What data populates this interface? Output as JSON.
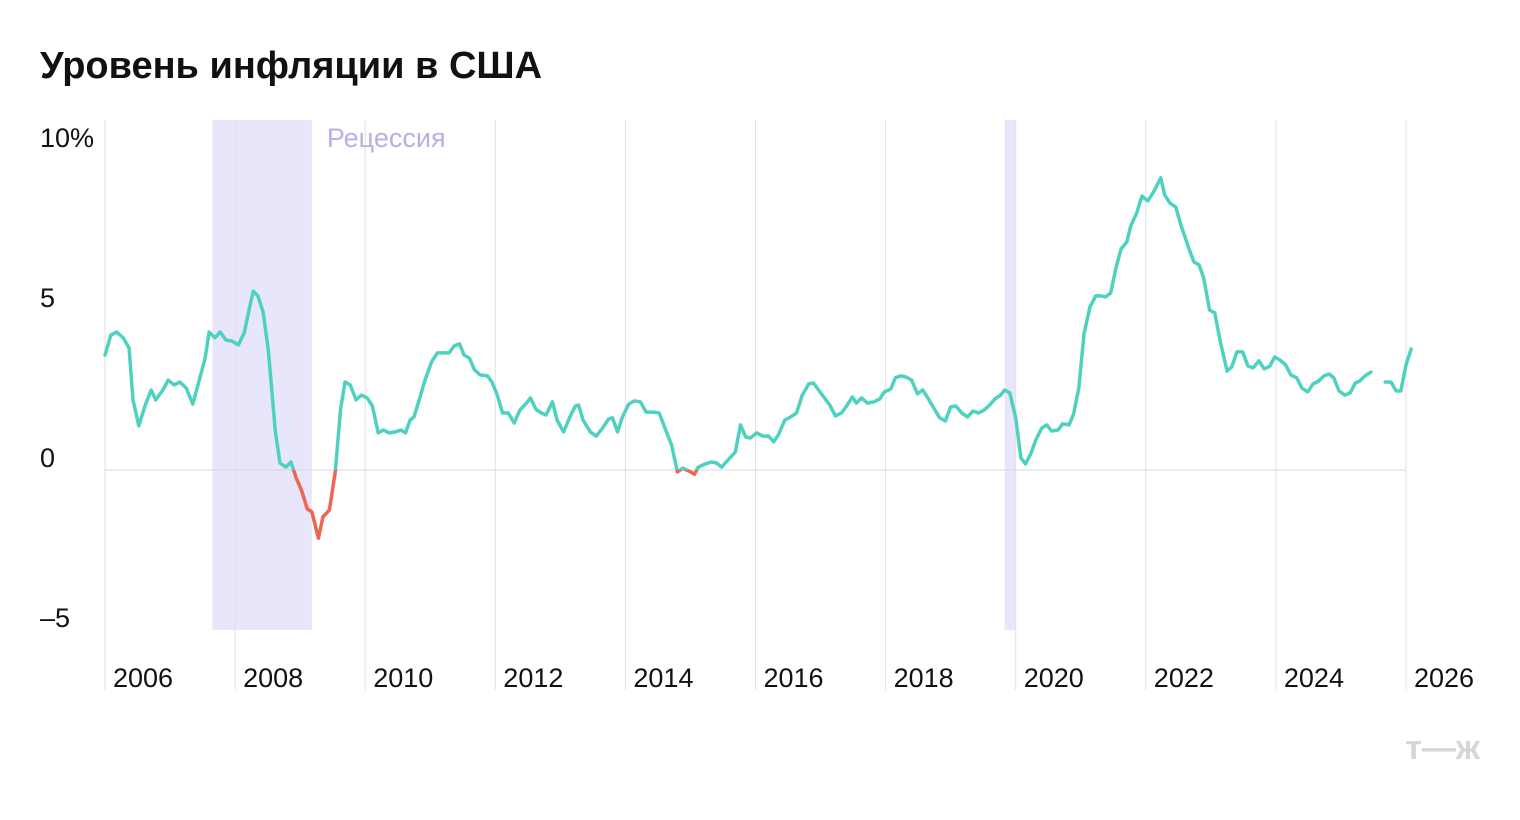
{
  "chart_data": {
    "type": "line",
    "title": "Уровень инфляции в США",
    "recession_label": "Рецессия",
    "logo": "т—ж",
    "color": "#4fd1c0",
    "negative_color": "#ec6651",
    "recession_color": "#e8e6fa",
    "grid": true,
    "xlim": [
      2006,
      2026
    ],
    "xticks": [
      2006,
      2008,
      2010,
      2012,
      2014,
      2016,
      2018,
      2020,
      2022,
      2024,
      2026
    ],
    "ylim": [
      -5,
      11
    ],
    "yticks": [
      {
        "value": -5,
        "label": "–5"
      },
      0,
      5,
      {
        "value": 10,
        "label": "10%"
      }
    ],
    "recessions": [
      {
        "start": 2007.65,
        "end": 2009.18
      },
      {
        "start": 2019.83,
        "end": 2020.0
      }
    ],
    "x": [
      2006.0,
      2006.09,
      2006.18,
      2006.28,
      2006.37,
      2006.43,
      2006.52,
      2006.62,
      2006.71,
      2006.78,
      2006.89,
      2006.97,
      2007.06,
      2007.15,
      2007.25,
      2007.35,
      2007.45,
      2007.54,
      2007.6,
      2007.69,
      2007.77,
      2007.86,
      2007.95,
      2008.05,
      2008.14,
      2008.23,
      2008.28,
      2008.35,
      2008.43,
      2008.51,
      2008.62,
      2008.69,
      2008.78,
      2008.86,
      2008.94,
      2009.02,
      2009.11,
      2009.18,
      2009.28,
      2009.35,
      2009.45,
      2009.54,
      2009.62,
      2009.69,
      2009.77,
      2009.86,
      2009.94,
      2010.03,
      2010.11,
      2010.2,
      2010.28,
      2010.37,
      2010.46,
      2010.55,
      2010.62,
      2010.69,
      2010.75,
      2010.83,
      2010.92,
      2011.02,
      2011.11,
      2011.2,
      2011.29,
      2011.37,
      2011.45,
      2011.52,
      2011.6,
      2011.68,
      2011.77,
      2011.88,
      2011.95,
      2012.03,
      2012.11,
      2012.2,
      2012.29,
      2012.38,
      2012.48,
      2012.54,
      2012.63,
      2012.71,
      2012.78,
      2012.88,
      2012.95,
      2013.05,
      2013.14,
      2013.23,
      2013.28,
      2013.35,
      2013.46,
      2013.55,
      2013.65,
      2013.74,
      2013.8,
      2013.88,
      2013.95,
      2014.05,
      2014.14,
      2014.23,
      2014.32,
      2014.42,
      2014.52,
      2014.62,
      2014.71,
      2014.8,
      2014.88,
      2014.98,
      2015.06,
      2015.12,
      2015.23,
      2015.32,
      2015.4,
      2015.48,
      2015.55,
      2015.62,
      2015.69,
      2015.77,
      2015.85,
      2015.92,
      2016.02,
      2016.11,
      2016.2,
      2016.28,
      2016.35,
      2016.45,
      2016.54,
      2016.63,
      2016.72,
      2016.82,
      2016.89,
      2016.97,
      2017.06,
      2017.14,
      2017.23,
      2017.32,
      2017.4,
      2017.49,
      2017.55,
      2017.63,
      2017.72,
      2017.82,
      2017.91,
      2017.98,
      2018.08,
      2018.15,
      2018.23,
      2018.31,
      2018.4,
      2018.49,
      2018.57,
      2018.65,
      2018.74,
      2018.83,
      2018.92,
      2019.0,
      2019.08,
      2019.17,
      2019.26,
      2019.34,
      2019.43,
      2019.52,
      2019.6,
      2019.68,
      2019.77,
      2019.83,
      2019.91,
      2020.0,
      2020.08,
      2020.15,
      2020.23,
      2020.31,
      2020.4,
      2020.48,
      2020.55,
      2020.65,
      2020.72,
      2020.82,
      2020.89,
      2020.97,
      2021.05,
      2021.14,
      2021.23,
      2021.31,
      2021.38,
      2021.46,
      2021.54,
      2021.62,
      2021.71,
      2021.77,
      2021.86,
      2021.94,
      2022.03,
      2022.11,
      2022.23,
      2022.29,
      2022.37,
      2022.46,
      2022.55,
      2022.66,
      2022.74,
      2022.82,
      2022.89,
      2022.98,
      2023.06,
      2023.14,
      2023.25,
      2023.32,
      2023.4,
      2023.49,
      2023.57,
      2023.65,
      2023.74,
      2023.82,
      2023.91,
      2023.98,
      2024.06,
      2024.15,
      2024.23,
      2024.32,
      2024.4,
      2024.49,
      2024.57,
      2024.66,
      2024.74,
      2024.82,
      2024.89,
      2024.97,
      2025.06,
      2025.14,
      2025.22,
      2025.29,
      2025.37,
      2025.46,
      2025.55,
      2025.68,
      2025.77,
      2025.85,
      2025.92,
      2026.0,
      2026.08
    ],
    "values": [
      3.59,
      4.22,
      4.31,
      4.13,
      3.81,
      2.19,
      1.38,
      2.03,
      2.5,
      2.19,
      2.5,
      2.81,
      2.66,
      2.75,
      2.56,
      2.06,
      2.81,
      3.5,
      4.31,
      4.13,
      4.31,
      4.06,
      4.03,
      3.91,
      4.28,
      5.16,
      5.59,
      5.44,
      4.94,
      3.75,
      1.19,
      0.22,
      0.09,
      0.25,
      -0.25,
      -0.63,
      -1.22,
      -1.31,
      -2.13,
      -1.47,
      -1.25,
      -0.06,
      1.88,
      2.75,
      2.66,
      2.19,
      2.34,
      2.25,
      2.0,
      1.16,
      1.25,
      1.16,
      1.19,
      1.25,
      1.16,
      1.56,
      1.66,
      2.19,
      2.81,
      3.38,
      3.66,
      3.66,
      3.66,
      3.88,
      3.94,
      3.59,
      3.5,
      3.13,
      2.97,
      2.94,
      2.75,
      2.34,
      1.78,
      1.78,
      1.47,
      1.88,
      2.09,
      2.25,
      1.88,
      1.78,
      1.72,
      2.13,
      1.56,
      1.19,
      1.63,
      2.0,
      2.03,
      1.56,
      1.19,
      1.06,
      1.31,
      1.59,
      1.63,
      1.19,
      1.63,
      2.06,
      2.16,
      2.13,
      1.81,
      1.81,
      1.78,
      1.25,
      0.78,
      -0.06,
      0.06,
      -0.03,
      -0.13,
      0.09,
      0.19,
      0.25,
      0.22,
      0.09,
      0.25,
      0.41,
      0.56,
      1.41,
      1.03,
      1.0,
      1.16,
      1.06,
      1.06,
      0.88,
      1.09,
      1.56,
      1.66,
      1.78,
      2.34,
      2.69,
      2.72,
      2.5,
      2.25,
      2.03,
      1.69,
      1.78,
      2.0,
      2.28,
      2.09,
      2.25,
      2.09,
      2.13,
      2.22,
      2.44,
      2.53,
      2.88,
      2.94,
      2.91,
      2.81,
      2.38,
      2.5,
      2.25,
      1.94,
      1.63,
      1.53,
      1.97,
      2.0,
      1.78,
      1.66,
      1.84,
      1.78,
      1.88,
      2.03,
      2.22,
      2.34,
      2.5,
      2.41,
      1.63,
      0.38,
      0.19,
      0.5,
      0.94,
      1.31,
      1.41,
      1.22,
      1.25,
      1.44,
      1.41,
      1.75,
      2.56,
      4.25,
      5.09,
      5.44,
      5.44,
      5.41,
      5.53,
      6.31,
      6.91,
      7.13,
      7.63,
      8.03,
      8.56,
      8.41,
      8.66,
      9.13,
      8.59,
      8.34,
      8.22,
      7.59,
      6.94,
      6.5,
      6.41,
      6.0,
      5.0,
      4.91,
      4.06,
      3.09,
      3.22,
      3.69,
      3.69,
      3.25,
      3.19,
      3.41,
      3.16,
      3.25,
      3.53,
      3.44,
      3.28,
      2.97,
      2.88,
      2.56,
      2.44,
      2.69,
      2.78,
      2.94,
      3.0,
      2.88,
      2.47,
      2.34,
      2.41,
      2.72,
      2.78,
      2.94,
      3.06,
      null,
      2.75,
      2.75,
      2.47,
      2.47,
      3.28,
      3.78
    ]
  }
}
